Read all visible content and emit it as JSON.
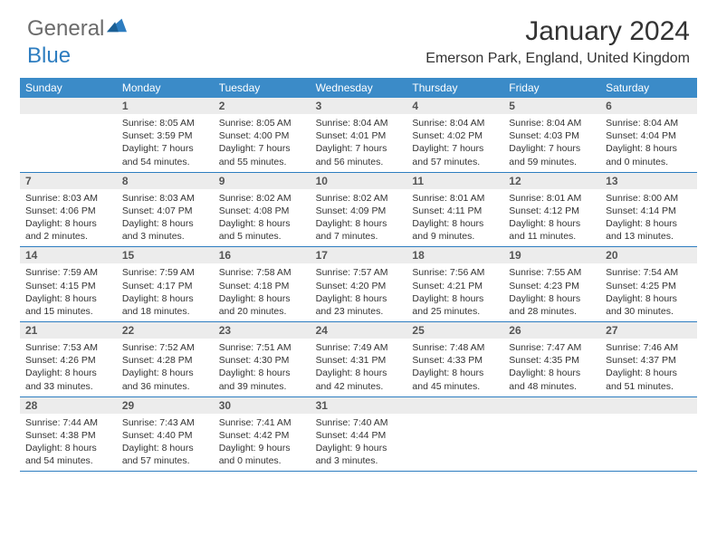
{
  "logo": {
    "general": "General",
    "blue": "Blue"
  },
  "title": "January 2024",
  "location": "Emerson Park, England, United Kingdom",
  "daynames": [
    "Sunday",
    "Monday",
    "Tuesday",
    "Wednesday",
    "Thursday",
    "Friday",
    "Saturday"
  ],
  "colors": {
    "header_bg": "#3b8bc8",
    "rule": "#2d7dc0",
    "daynum_bg": "#ececec"
  },
  "weeks": [
    [
      {
        "n": "",
        "sunrise": "",
        "sunset": "",
        "daylight": ""
      },
      {
        "n": "1",
        "sunrise": "8:05 AM",
        "sunset": "3:59 PM",
        "daylight": "7 hours and 54 minutes."
      },
      {
        "n": "2",
        "sunrise": "8:05 AM",
        "sunset": "4:00 PM",
        "daylight": "7 hours and 55 minutes."
      },
      {
        "n": "3",
        "sunrise": "8:04 AM",
        "sunset": "4:01 PM",
        "daylight": "7 hours and 56 minutes."
      },
      {
        "n": "4",
        "sunrise": "8:04 AM",
        "sunset": "4:02 PM",
        "daylight": "7 hours and 57 minutes."
      },
      {
        "n": "5",
        "sunrise": "8:04 AM",
        "sunset": "4:03 PM",
        "daylight": "7 hours and 59 minutes."
      },
      {
        "n": "6",
        "sunrise": "8:04 AM",
        "sunset": "4:04 PM",
        "daylight": "8 hours and 0 minutes."
      }
    ],
    [
      {
        "n": "7",
        "sunrise": "8:03 AM",
        "sunset": "4:06 PM",
        "daylight": "8 hours and 2 minutes."
      },
      {
        "n": "8",
        "sunrise": "8:03 AM",
        "sunset": "4:07 PM",
        "daylight": "8 hours and 3 minutes."
      },
      {
        "n": "9",
        "sunrise": "8:02 AM",
        "sunset": "4:08 PM",
        "daylight": "8 hours and 5 minutes."
      },
      {
        "n": "10",
        "sunrise": "8:02 AM",
        "sunset": "4:09 PM",
        "daylight": "8 hours and 7 minutes."
      },
      {
        "n": "11",
        "sunrise": "8:01 AM",
        "sunset": "4:11 PM",
        "daylight": "8 hours and 9 minutes."
      },
      {
        "n": "12",
        "sunrise": "8:01 AM",
        "sunset": "4:12 PM",
        "daylight": "8 hours and 11 minutes."
      },
      {
        "n": "13",
        "sunrise": "8:00 AM",
        "sunset": "4:14 PM",
        "daylight": "8 hours and 13 minutes."
      }
    ],
    [
      {
        "n": "14",
        "sunrise": "7:59 AM",
        "sunset": "4:15 PM",
        "daylight": "8 hours and 15 minutes."
      },
      {
        "n": "15",
        "sunrise": "7:59 AM",
        "sunset": "4:17 PM",
        "daylight": "8 hours and 18 minutes."
      },
      {
        "n": "16",
        "sunrise": "7:58 AM",
        "sunset": "4:18 PM",
        "daylight": "8 hours and 20 minutes."
      },
      {
        "n": "17",
        "sunrise": "7:57 AM",
        "sunset": "4:20 PM",
        "daylight": "8 hours and 23 minutes."
      },
      {
        "n": "18",
        "sunrise": "7:56 AM",
        "sunset": "4:21 PM",
        "daylight": "8 hours and 25 minutes."
      },
      {
        "n": "19",
        "sunrise": "7:55 AM",
        "sunset": "4:23 PM",
        "daylight": "8 hours and 28 minutes."
      },
      {
        "n": "20",
        "sunrise": "7:54 AM",
        "sunset": "4:25 PM",
        "daylight": "8 hours and 30 minutes."
      }
    ],
    [
      {
        "n": "21",
        "sunrise": "7:53 AM",
        "sunset": "4:26 PM",
        "daylight": "8 hours and 33 minutes."
      },
      {
        "n": "22",
        "sunrise": "7:52 AM",
        "sunset": "4:28 PM",
        "daylight": "8 hours and 36 minutes."
      },
      {
        "n": "23",
        "sunrise": "7:51 AM",
        "sunset": "4:30 PM",
        "daylight": "8 hours and 39 minutes."
      },
      {
        "n": "24",
        "sunrise": "7:49 AM",
        "sunset": "4:31 PM",
        "daylight": "8 hours and 42 minutes."
      },
      {
        "n": "25",
        "sunrise": "7:48 AM",
        "sunset": "4:33 PM",
        "daylight": "8 hours and 45 minutes."
      },
      {
        "n": "26",
        "sunrise": "7:47 AM",
        "sunset": "4:35 PM",
        "daylight": "8 hours and 48 minutes."
      },
      {
        "n": "27",
        "sunrise": "7:46 AM",
        "sunset": "4:37 PM",
        "daylight": "8 hours and 51 minutes."
      }
    ],
    [
      {
        "n": "28",
        "sunrise": "7:44 AM",
        "sunset": "4:38 PM",
        "daylight": "8 hours and 54 minutes."
      },
      {
        "n": "29",
        "sunrise": "7:43 AM",
        "sunset": "4:40 PM",
        "daylight": "8 hours and 57 minutes."
      },
      {
        "n": "30",
        "sunrise": "7:41 AM",
        "sunset": "4:42 PM",
        "daylight": "9 hours and 0 minutes."
      },
      {
        "n": "31",
        "sunrise": "7:40 AM",
        "sunset": "4:44 PM",
        "daylight": "9 hours and 3 minutes."
      },
      {
        "n": "",
        "sunrise": "",
        "sunset": "",
        "daylight": ""
      },
      {
        "n": "",
        "sunrise": "",
        "sunset": "",
        "daylight": ""
      },
      {
        "n": "",
        "sunrise": "",
        "sunset": "",
        "daylight": ""
      }
    ]
  ]
}
